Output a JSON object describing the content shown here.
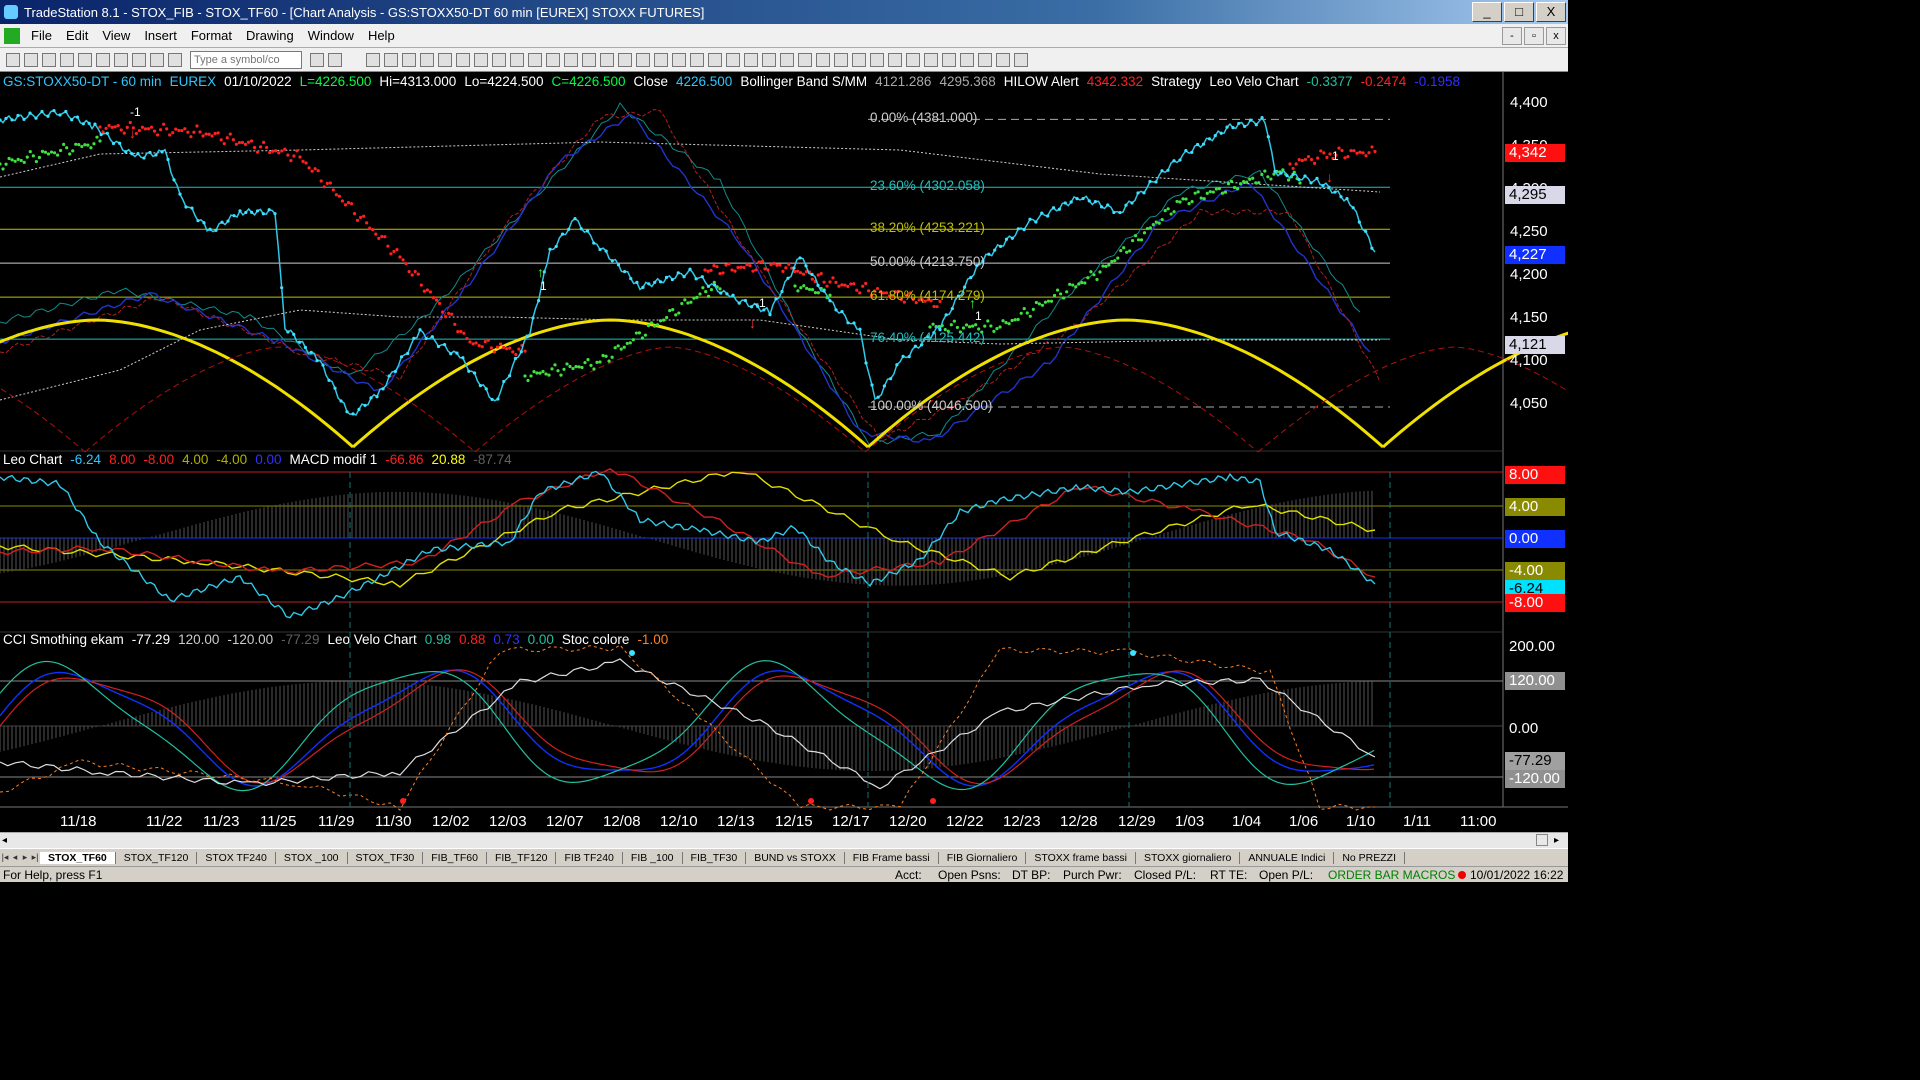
{
  "window": {
    "title": "TradeStation 8.1 - STOX_FIB - STOX_TF60 - [Chart Analysis - GS:STOXX50-DT  60 min  [EUREX] STOXX FUTURES]",
    "min": "_",
    "max": "□",
    "close": "X"
  },
  "menu": [
    "File",
    "Edit",
    "View",
    "Insert",
    "Format",
    "Drawing",
    "Window",
    "Help"
  ],
  "toolbar": {
    "symbol_placeholder": "Type a symbol/co"
  },
  "header": {
    "price": [
      {
        "t": "GS:STOXX50-DT - 60 min",
        "c": "#2ec6ff"
      },
      {
        "t": "EUREX",
        "c": "#2ec6ff"
      },
      {
        "t": "01/10/2022",
        "c": "#ffffff"
      },
      {
        "t": "L=4226.500",
        "c": "#00ff40"
      },
      {
        "t": "Hi=4313.000",
        "c": "#ffffff"
      },
      {
        "t": "Lo=4224.500",
        "c": "#ffffff"
      },
      {
        "t": "C=4226.500",
        "c": "#00ff40"
      },
      {
        "t": "Close",
        "c": "#ffffff"
      },
      {
        "t": "4226.500",
        "c": "#2ec6ff"
      },
      {
        "t": "Bollinger Band S/MM",
        "c": "#ffffff"
      },
      {
        "t": "4121.286",
        "c": "#aaaaaa"
      },
      {
        "t": "4295.368",
        "c": "#aaaaaa"
      },
      {
        "t": "HILOW Alert",
        "c": "#ffffff"
      },
      {
        "t": "4342.332",
        "c": "#ff2020"
      },
      {
        "t": "Strategy",
        "c": "#ffffff"
      },
      {
        "t": "Leo Velo Chart",
        "c": "#ffffff"
      },
      {
        "t": "-0.3377",
        "c": "#20c0a0"
      },
      {
        "t": "-0.2474",
        "c": "#ff2020"
      },
      {
        "t": "-0.1958",
        "c": "#3030ff"
      }
    ],
    "leo": [
      {
        "t": "Leo Chart",
        "c": "#ffffff"
      },
      {
        "t": "-6.24",
        "c": "#2ec6ff"
      },
      {
        "t": "8.00",
        "c": "#ff2020"
      },
      {
        "t": "-8.00",
        "c": "#ff2020"
      },
      {
        "t": "4.00",
        "c": "#b0b000"
      },
      {
        "t": "-4.00",
        "c": "#b0b000"
      },
      {
        "t": "0.00",
        "c": "#3030ff"
      },
      {
        "t": "MACD modif 1",
        "c": "#ffffff"
      },
      {
        "t": "-66.86",
        "c": "#ff2020"
      },
      {
        "t": "20.88",
        "c": "#ffff00"
      },
      {
        "t": "-87.74",
        "c": "#606060"
      }
    ],
    "cci": [
      {
        "t": "CCI Smothing ekam",
        "c": "#ffffff"
      },
      {
        "t": "-77.29",
        "c": "#ffffff"
      },
      {
        "t": "120.00",
        "c": "#cccccc"
      },
      {
        "t": "-120.00",
        "c": "#cccccc"
      },
      {
        "t": "-77.29",
        "c": "#606060"
      },
      {
        "t": "Leo Velo Chart",
        "c": "#ffffff"
      },
      {
        "t": "0.98",
        "c": "#20c0a0"
      },
      {
        "t": "0.88",
        "c": "#ff2020"
      },
      {
        "t": "0.73",
        "c": "#3030ff"
      },
      {
        "t": "0.00",
        "c": "#20c0a0"
      },
      {
        "t": "Stoc colore",
        "c": "#ffffff"
      },
      {
        "t": "-1.00",
        "c": "#ff8020"
      }
    ]
  },
  "fib_levels": [
    {
      "label": "0.00% (4381.000)",
      "c": "#cccccc",
      "price": 4381
    },
    {
      "label": "23.60% (4302.058)",
      "c": "#20c0c0",
      "price": 4302.058
    },
    {
      "label": "38.20% (4253.221)",
      "c": "#c0c000",
      "price": 4253.221
    },
    {
      "label": "50.00% (4213.750)",
      "c": "#cccccc",
      "price": 4213.75
    },
    {
      "label": "61.80% (4174.279)",
      "c": "#c0c000",
      "price": 4174.279
    },
    {
      "label": "76.40% (4125.442)",
      "c": "#20c0c0",
      "price": 4125.442
    },
    {
      "label": "100.00% (4046.500)",
      "c": "#cccccc",
      "price": 4046.5
    }
  ],
  "price_axis": {
    "ticks": [
      "4,400",
      "4,350",
      "4,300",
      "4,250",
      "4,200",
      "4,150",
      "4,100",
      "4,050"
    ],
    "badges": [
      {
        "t": "4,342",
        "bg": "#ff1010",
        "fg": "#ffffff"
      },
      {
        "t": "4,295",
        "bg": "#d8d8e8",
        "fg": "#000000"
      },
      {
        "t": "4,227",
        "bg": "#1030ff",
        "fg": "#ffffff"
      },
      {
        "t": "4,121",
        "bg": "#d8d8e8",
        "fg": "#000000"
      }
    ]
  },
  "leo_axis": [
    {
      "t": "8.00",
      "bg": "#ff1010",
      "fg": "#ffffff"
    },
    {
      "t": "4.00",
      "bg": "#8a8a00",
      "fg": "#ffffff"
    },
    {
      "t": "0.00",
      "bg": "#1030ff",
      "fg": "#ffffff"
    },
    {
      "t": "-4.00",
      "bg": "#8a8a00",
      "fg": "#ffffff"
    },
    {
      "t": "-6.24",
      "bg": "#00e0ff",
      "fg": "#000000"
    },
    {
      "t": "-8.00",
      "bg": "#ff1010",
      "fg": "#ffffff"
    }
  ],
  "cci_axis": [
    {
      "t": "200.00",
      "bg": "",
      "fg": "#ffffff"
    },
    {
      "t": "120.00",
      "bg": "#909090",
      "fg": "#ffffff"
    },
    {
      "t": "0.00",
      "bg": "",
      "fg": "#ffffff"
    },
    {
      "t": "-77.29",
      "bg": "#a0a0a0",
      "fg": "#000000"
    },
    {
      "t": "-120.00",
      "bg": "#909090",
      "fg": "#ffffff"
    }
  ],
  "dates": [
    "11/18",
    "11/22",
    "11/23",
    "11/25",
    "11/29",
    "11/30",
    "12/02",
    "12/03",
    "12/07",
    "12/08",
    "12/10",
    "12/13",
    "12/15",
    "12/17",
    "12/20",
    "12/22",
    "12/23",
    "12/28",
    "12/29",
    "1/03",
    "1/04",
    "1/06",
    "1/10",
    "1/11",
    "11:00"
  ],
  "markers": [
    "-1",
    "1",
    "-1",
    "1",
    "1",
    "1"
  ],
  "tabs": [
    "STOX_TF60",
    "STOX_TF120",
    "STOX TF240",
    "STOX _100",
    "STOX_TF30",
    "FIB_TF60",
    "FIB_TF120",
    "FIB TF240",
    "FIB _100",
    "FIB_TF30",
    "BUND vs STOXX",
    "FIB Frame bassi",
    "FIB Giornaliero",
    "STOXX frame bassi",
    "STOXX giornaliero",
    "ANNUALE Indici",
    "No PREZZI"
  ],
  "status": {
    "help": "For Help, press F1",
    "acct": "Acct:",
    "open_psns": "Open Psns:",
    "dt_bp": "DT BP:",
    "purch_pwr": "Purch Pwr:",
    "closed_pl": "Closed P/L:",
    "rt_te": "RT TE:",
    "open_pl": "Open P/L:",
    "macros": "ORDER BAR  MACROS",
    "clock": "10/01/2022 16:22"
  }
}
